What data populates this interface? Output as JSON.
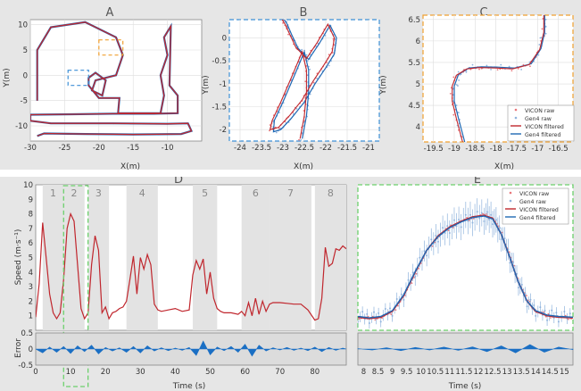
{
  "colors": {
    "bg": "#e6e6e6",
    "axes_bg": "#ffffff",
    "vicon_filtered": "#c0262d",
    "gen4_filtered": "#1f68b4",
    "vicon_raw": "#e9767a",
    "gen4_raw": "#8fb3dd",
    "error_fill": "#1a6fc4",
    "segment_shade": "#e3e3e3",
    "zoom_blue": "#3c8fd6",
    "zoom_orange": "#f0a030",
    "zoom_green": "#6cd06c",
    "grid": "#dddddd"
  },
  "chart_data": [
    {
      "id": "A",
      "type": "line",
      "title": "A",
      "xlabel": "X(m)",
      "ylabel": "Y(m)",
      "xlim": [
        -30,
        -5
      ],
      "ylim": [
        -13,
        11
      ],
      "xticks": [
        -30,
        -25,
        -20,
        -15,
        -10
      ],
      "yticks": [
        -10,
        -5,
        0,
        5,
        10
      ],
      "grid": true,
      "series": [
        {
          "x": [
            -29,
            -29,
            -27,
            -22,
            -17.5,
            -16.5,
            -17.5,
            -20.5,
            -21,
            -19.5,
            -19,
            -20.5,
            -21.5,
            -21.5,
            -20,
            -17,
            -17.2,
            -11,
            -10.5,
            -11,
            -10,
            -10.5,
            -9.5,
            -9.7,
            -8.5,
            -8.5,
            -12,
            -18,
            -24,
            -30,
            -30,
            -27,
            -18,
            -10,
            -7,
            -6.5,
            -8,
            -15,
            -22,
            -28,
            -29
          ],
          "y": [
            -5,
            5,
            9.5,
            10.5,
            7.5,
            4,
            0,
            -1,
            -3,
            -4,
            -1,
            0.5,
            -0.5,
            -2,
            -4.5,
            -4.5,
            -7.5,
            -7.5,
            -4,
            0,
            4,
            7.5,
            9.7,
            -2,
            -4,
            -7.5,
            -7.6,
            -7.6,
            -7.7,
            -7.8,
            -9,
            -9.5,
            -9.5,
            -9.6,
            -9.5,
            -11,
            -11.6,
            -11.7,
            -11.6,
            -11.5,
            -12
          ]
        }
      ],
      "zoom_boxes": [
        {
          "ref": "B",
          "x": [
            -24.5,
            -21.5
          ],
          "y": [
            -2,
            1
          ]
        },
        {
          "ref": "C",
          "x": [
            -20,
            -16.5
          ],
          "y": [
            4,
            7
          ]
        }
      ]
    },
    {
      "id": "B",
      "type": "line",
      "title": "B",
      "xlabel": "X(m)",
      "ylabel": "Y(m)",
      "xlim": [
        -24.25,
        -20.75
      ],
      "ylim": [
        -2.25,
        0.4
      ],
      "xticks": [
        -24,
        -23.5,
        -23,
        -22.5,
        -22,
        -21.5,
        -21
      ],
      "yticks": [
        -2,
        -1.5,
        -1,
        -0.5,
        0
      ],
      "grid": true,
      "series": [
        {
          "name": "VICON filtered",
          "x": [
            -22.6,
            -22.5,
            -22.45,
            -22.45,
            -22.55,
            -22.75,
            -23.05,
            -23.25,
            -23.3,
            -23.1,
            -22.85,
            -22.55,
            -22.3,
            -22.05,
            -21.85,
            -21.8,
            -21.95,
            -22.2,
            -22.45,
            -22.7,
            -22.85,
            -22.95,
            -23.05
          ],
          "y": [
            -2.2,
            -1.7,
            -1.2,
            -0.7,
            -0.3,
            -0.75,
            -1.4,
            -1.8,
            -2.0,
            -1.95,
            -1.7,
            -1.35,
            -0.95,
            -0.6,
            -0.3,
            0.0,
            0.3,
            -0.1,
            -0.45,
            -0.2,
            0.1,
            0.3,
            0.45
          ]
        },
        {
          "name": "Gen4 filtered",
          "x": [
            -22.55,
            -22.45,
            -22.4,
            -22.4,
            -22.5,
            -22.7,
            -23.0,
            -23.2,
            -23.22,
            -23.05,
            -22.8,
            -22.5,
            -22.25,
            -22.0,
            -21.8,
            -21.75,
            -21.9,
            -22.15,
            -22.4,
            -22.65,
            -22.8,
            -22.9,
            -23.0
          ],
          "y": [
            -2.2,
            -1.7,
            -1.2,
            -0.7,
            -0.3,
            -0.75,
            -1.4,
            -1.8,
            -2.05,
            -2.0,
            -1.75,
            -1.4,
            -1.0,
            -0.65,
            -0.35,
            0.0,
            0.28,
            -0.12,
            -0.47,
            -0.22,
            0.08,
            0.3,
            0.45
          ]
        }
      ]
    },
    {
      "id": "C",
      "type": "line",
      "title": "C",
      "xlabel": "X(m)",
      "ylabel": "Y(m)",
      "xlim": [
        -19.75,
        -16.15
      ],
      "ylim": [
        3.65,
        6.6
      ],
      "xticks": [
        -19.5,
        -19,
        -18.5,
        -18,
        -17.5,
        -17,
        -16.5
      ],
      "yticks": [
        4,
        4.5,
        5,
        5.5,
        6,
        6.5
      ],
      "grid": true,
      "legend": [
        "VICON raw",
        "Gen4 raw",
        "VICON filtered",
        "Gen4 filtered"
      ],
      "legend_position": "bottom-right",
      "series": [
        {
          "name": "VICON filtered",
          "x": [
            -18.8,
            -18.95,
            -19.05,
            -19.05,
            -18.95,
            -18.7,
            -18.4,
            -18.0,
            -17.6,
            -17.2,
            -16.95,
            -16.85,
            -16.85
          ],
          "y": [
            3.65,
            4.2,
            4.6,
            4.95,
            5.2,
            5.35,
            5.38,
            5.37,
            5.35,
            5.45,
            5.8,
            6.2,
            6.6
          ]
        },
        {
          "name": "Gen4 filtered",
          "x": [
            -18.75,
            -18.9,
            -19.0,
            -19.0,
            -18.9,
            -18.65,
            -18.35,
            -17.95,
            -17.55,
            -17.15,
            -16.92,
            -16.83,
            -16.83
          ],
          "y": [
            3.65,
            4.2,
            4.6,
            4.95,
            5.22,
            5.37,
            5.4,
            5.39,
            5.37,
            5.47,
            5.82,
            6.2,
            6.6
          ]
        }
      ]
    },
    {
      "id": "D",
      "type": "line",
      "title": "D",
      "xlabel": "Time (s)",
      "ylabel": "Speed (m·s⁻¹)",
      "xlim": [
        0,
        89
      ],
      "ylim": [
        0,
        10
      ],
      "xticks": [
        0,
        10,
        20,
        30,
        40,
        50,
        60,
        70,
        80
      ],
      "yticks": [
        1,
        2,
        3,
        4,
        5,
        6,
        7,
        8,
        9,
        10
      ],
      "segments": [
        {
          "label": "1",
          "start": 2,
          "end": 8
        },
        {
          "label": "2",
          "start": 8,
          "end": 14
        },
        {
          "label": "3",
          "start": 15,
          "end": 21
        },
        {
          "label": "4",
          "start": 26,
          "end": 35
        },
        {
          "label": "5",
          "start": 45,
          "end": 52
        },
        {
          "label": "6",
          "start": 59,
          "end": 67
        },
        {
          "label": "7",
          "start": 67,
          "end": 79
        },
        {
          "label": "8",
          "start": 80,
          "end": 89
        }
      ],
      "zoom_box": {
        "ref": "E",
        "x": [
          8,
          15
        ]
      },
      "series": [
        {
          "name": "Speed",
          "x": [
            0,
            1,
            2,
            3,
            4,
            5,
            6,
            7,
            8,
            9,
            10,
            11,
            12,
            13,
            14,
            15,
            16,
            17,
            18,
            19,
            20,
            21,
            22,
            23,
            24,
            25,
            26,
            27,
            28,
            29,
            30,
            31,
            32,
            33,
            34,
            35,
            36,
            38,
            40,
            42,
            44,
            45,
            46,
            47,
            48,
            49,
            50,
            51,
            52,
            53,
            54,
            56,
            58,
            59,
            60,
            61,
            62,
            63,
            64,
            65,
            66,
            67,
            68,
            70,
            72,
            74,
            76,
            78,
            80,
            81,
            82,
            83,
            84,
            85,
            86,
            87,
            88,
            89
          ],
          "y": [
            0.9,
            3.2,
            7.4,
            5,
            2.5,
            1.2,
            0.8,
            1.2,
            3.5,
            7,
            8,
            7.5,
            4.5,
            1.5,
            0.8,
            1.2,
            4.5,
            6.5,
            5.5,
            1.2,
            1.6,
            0.8,
            1.2,
            1.3,
            1.5,
            1.6,
            2,
            3.5,
            5.1,
            2.5,
            5,
            4.2,
            5.2,
            4.5,
            1.8,
            1.4,
            1.3,
            1.4,
            1.5,
            1.3,
            1.4,
            3.8,
            4.8,
            4.2,
            4.9,
            2.5,
            4,
            2.2,
            1.5,
            1.3,
            1.2,
            1.2,
            1.1,
            1.3,
            1,
            1.9,
            1,
            2.2,
            1.1,
            2,
            1.3,
            1.8,
            1.9,
            1.9,
            1.85,
            1.8,
            1.8,
            1.4,
            0.7,
            0.8,
            2.2,
            5.7,
            4.4,
            4.6,
            5.6,
            5.5,
            5.8,
            5.6
          ]
        }
      ],
      "error": {
        "ylabel": "Error",
        "ylim": [
          -0.5,
          0.5
        ],
        "yticks": [
          -0.5,
          0,
          0.5
        ],
        "x": [
          0,
          2,
          4,
          6,
          8,
          10,
          12,
          14,
          16,
          18,
          20,
          22,
          24,
          26,
          28,
          30,
          32,
          34,
          36,
          38,
          40,
          42,
          44,
          46,
          48,
          50,
          52,
          54,
          56,
          58,
          60,
          62,
          64,
          66,
          68,
          70,
          72,
          74,
          76,
          78,
          80,
          82,
          84,
          86,
          88,
          89
        ],
        "y": [
          0,
          -0.12,
          0.06,
          -0.1,
          0.08,
          -0.14,
          0.1,
          -0.08,
          0.12,
          -0.15,
          0.05,
          -0.06,
          0.04,
          -0.1,
          0.08,
          -0.12,
          0.1,
          -0.06,
          0.04,
          -0.05,
          0.03,
          -0.04,
          0.05,
          -0.2,
          0.25,
          -0.18,
          0.06,
          -0.05,
          0.08,
          -0.1,
          0.15,
          -0.22,
          0.12,
          -0.06,
          0.04,
          -0.03,
          0.05,
          -0.04,
          0.03,
          -0.05,
          0.06,
          -0.08,
          0.05,
          -0.04,
          0.03,
          0
        ]
      }
    },
    {
      "id": "E",
      "type": "line",
      "title": "E",
      "xlabel": "Time (s)",
      "ylabel": "",
      "xlim": [
        7.8,
        15.3
      ],
      "ylim": [
        0,
        10
      ],
      "xticks": [
        8,
        8.5,
        9,
        9.5,
        10,
        10.5,
        11,
        11.5,
        12,
        12.5,
        13,
        13.5,
        14,
        14.5,
        15
      ],
      "legend": [
        "VICON raw",
        "Gen4 raw",
        "VICON filtered",
        "Gen4 filtered"
      ],
      "legend_position": "top-right",
      "series": [
        {
          "name": "VICON filtered",
          "x": [
            7.8,
            8.2,
            8.6,
            9,
            9.4,
            9.8,
            10.2,
            10.6,
            11,
            11.4,
            11.8,
            12.2,
            12.5,
            12.8,
            13.1,
            13.4,
            13.7,
            14,
            14.4,
            14.8,
            15.3
          ],
          "y": [
            0.9,
            0.8,
            0.9,
            1.3,
            2.4,
            4,
            5.5,
            6.5,
            7.1,
            7.5,
            7.8,
            7.9,
            7.7,
            6.6,
            5,
            3.3,
            2,
            1.3,
            1,
            0.9,
            0.85
          ]
        },
        {
          "name": "Gen4 filtered",
          "x": [
            7.8,
            8.2,
            8.6,
            9,
            9.4,
            9.8,
            10.2,
            10.6,
            11,
            11.4,
            11.8,
            12.2,
            12.5,
            12.8,
            13.1,
            13.4,
            13.7,
            14,
            14.4,
            14.8,
            15.3
          ],
          "y": [
            0.95,
            0.85,
            0.95,
            1.35,
            2.45,
            4.05,
            5.5,
            6.45,
            7.05,
            7.45,
            7.75,
            7.85,
            7.65,
            6.6,
            5,
            3.3,
            2,
            1.35,
            1.05,
            0.95,
            0.9
          ]
        }
      ],
      "error": {
        "x": [
          7.8,
          8.3,
          8.8,
          9.3,
          9.8,
          10.3,
          10.8,
          11.3,
          11.8,
          12.3,
          12.8,
          13.3,
          13.8,
          14.3,
          14.8,
          15.3
        ],
        "y": [
          0.01,
          -0.03,
          0.04,
          -0.05,
          0.05,
          -0.03,
          0.06,
          -0.04,
          0.07,
          -0.08,
          0.1,
          -0.12,
          0.14,
          -0.1,
          0.06,
          -0.02
        ]
      }
    }
  ]
}
